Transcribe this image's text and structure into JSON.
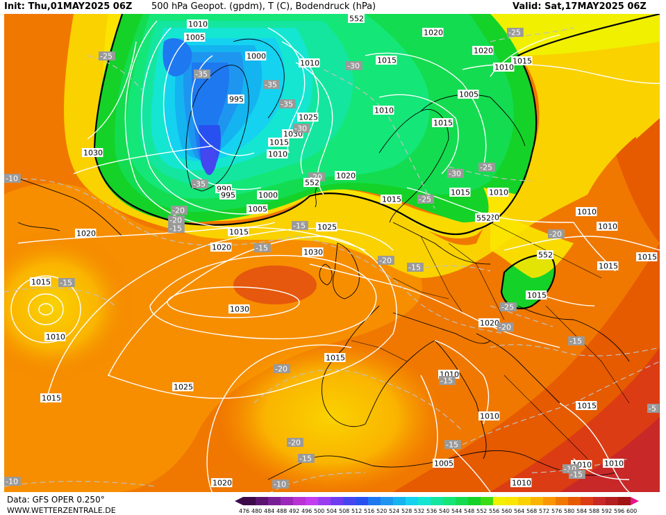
{
  "header": {
    "init": "Init: Thu,01MAY2025 06Z",
    "title": "500 hPa Geopot. (gpdm), T (C), Bodendruck (hPa)",
    "valid": "Valid: Sat,17MAY2025 06Z"
  },
  "footer": {
    "data_source": "Data: GFS OPER 0.250°",
    "website": "WWW.WETTERZENTRALE.DE"
  },
  "legend": {
    "values": [
      "476",
      "480",
      "484",
      "488",
      "492",
      "496",
      "500",
      "504",
      "508",
      "512",
      "516",
      "520",
      "524",
      "528",
      "532",
      "536",
      "540",
      "544",
      "548",
      "552",
      "556",
      "560",
      "564",
      "568",
      "572",
      "576",
      "580",
      "584",
      "588",
      "592",
      "596",
      "600"
    ],
    "colors": [
      "#3c0a4a",
      "#5a1470",
      "#7a1e96",
      "#9a28b8",
      "#b832d4",
      "#c43cf0",
      "#9a3cf0",
      "#6e3cf0",
      "#4646f0",
      "#2850f0",
      "#1e78f0",
      "#1e96f0",
      "#14b4f0",
      "#14d2f0",
      "#14e6d2",
      "#14e6a0",
      "#14e678",
      "#14dc50",
      "#14d228",
      "#3cdc14",
      "#f0f000",
      "#fae600",
      "#fad200",
      "#fab400",
      "#fa9600",
      "#f07800",
      "#e65a00",
      "#dc3c14",
      "#c82828",
      "#b41e1e",
      "#a01414",
      "#e6148c"
    ]
  },
  "map": {
    "pressure_labels": [
      {
        "text": "1010",
        "key": "p1"
      },
      {
        "text": "1005",
        "key": "p2"
      },
      {
        "text": "1000",
        "key": "p3"
      },
      {
        "text": "995",
        "key": "p4"
      },
      {
        "text": "1010",
        "key": "p5"
      },
      {
        "text": "1015",
        "key": "p6"
      },
      {
        "text": "1020",
        "key": "p7"
      },
      {
        "text": "1025",
        "key": "p8"
      },
      {
        "text": "1030",
        "key": "p9"
      },
      {
        "text": "1015",
        "key": "p10"
      },
      {
        "text": "990",
        "key": "p11"
      },
      {
        "text": "995",
        "key": "p12"
      },
      {
        "text": "1000",
        "key": "p13"
      },
      {
        "text": "1005",
        "key": "p14"
      },
      {
        "text": "1015",
        "key": "p15"
      },
      {
        "text": "1020",
        "key": "p16"
      },
      {
        "text": "1020",
        "key": "p17"
      },
      {
        "text": "1030",
        "key": "p18"
      },
      {
        "text": "1020",
        "key": "p19"
      },
      {
        "text": "1025",
        "key": "p20"
      },
      {
        "text": "1030",
        "key": "p21"
      },
      {
        "text": "1030",
        "key": "p22"
      },
      {
        "text": "1015",
        "key": "p23"
      },
      {
        "text": "1010",
        "key": "p24"
      },
      {
        "text": "1025",
        "key": "p25"
      },
      {
        "text": "1015",
        "key": "p26"
      },
      {
        "text": "1020",
        "key": "p27"
      },
      {
        "text": "1015",
        "key": "p28"
      },
      {
        "text": "1015",
        "key": "p29"
      },
      {
        "text": "1010",
        "key": "p30"
      },
      {
        "text": "1005",
        "key": "p31"
      },
      {
        "text": "1020",
        "key": "p32"
      },
      {
        "text": "1020",
        "key": "p33"
      },
      {
        "text": "1015",
        "key": "p34"
      },
      {
        "text": "1010",
        "key": "p35"
      },
      {
        "text": "1005",
        "key": "p36"
      },
      {
        "text": "1010",
        "key": "p37"
      },
      {
        "text": "1015",
        "key": "p38"
      },
      {
        "text": "1010",
        "key": "p39"
      },
      {
        "text": "1010",
        "key": "p40"
      },
      {
        "text": "1015",
        "key": "p41"
      },
      {
        "text": "1010",
        "key": "p42"
      },
      {
        "text": "1015",
        "key": "p43"
      },
      {
        "text": "1015",
        "key": "p44"
      },
      {
        "text": "1010",
        "key": "p45"
      },
      {
        "text": "1010",
        "key": "p46"
      },
      {
        "text": "1010",
        "key": "p47"
      },
      {
        "text": "1015",
        "key": "p48"
      },
      {
        "text": "1020",
        "key": "p49"
      },
      {
        "text": "1010",
        "key": "p50"
      },
      {
        "text": "1010",
        "key": "p51"
      },
      {
        "text": "1015",
        "key": "p52"
      }
    ],
    "temperature_labels": [
      {
        "text": "-25",
        "key": "t1"
      },
      {
        "text": "-35",
        "key": "t2"
      },
      {
        "text": "-35",
        "key": "t3"
      },
      {
        "text": "-35",
        "key": "t4"
      },
      {
        "text": "-30",
        "key": "t5"
      },
      {
        "text": "-30",
        "key": "t6"
      },
      {
        "text": "-25",
        "key": "t7"
      },
      {
        "text": "-30",
        "key": "t8"
      },
      {
        "text": "-25",
        "key": "t9"
      },
      {
        "text": "-25",
        "key": "t10"
      },
      {
        "text": "-20",
        "key": "t11"
      },
      {
        "text": "-20",
        "key": "t12"
      },
      {
        "text": "-15",
        "key": "t13"
      },
      {
        "text": "-15",
        "key": "t14"
      },
      {
        "text": "-15",
        "key": "t15"
      },
      {
        "text": "-35",
        "key": "t16"
      },
      {
        "text": "-10",
        "key": "t17"
      },
      {
        "text": "-15",
        "key": "t18"
      },
      {
        "text": "-20",
        "key": "t19"
      },
      {
        "text": "-20",
        "key": "t20"
      },
      {
        "text": "-20",
        "key": "t21"
      },
      {
        "text": "-25",
        "key": "t22"
      },
      {
        "text": "-20",
        "key": "t23"
      },
      {
        "text": "-15",
        "key": "t24"
      },
      {
        "text": "-20",
        "key": "t25"
      },
      {
        "text": "-15",
        "key": "t26"
      },
      {
        "text": "-20",
        "key": "t27"
      },
      {
        "text": "-15",
        "key": "t28"
      },
      {
        "text": "-10",
        "key": "t29"
      },
      {
        "text": "-15",
        "key": "t30"
      },
      {
        "text": "-10",
        "key": "t31"
      },
      {
        "text": "-10",
        "key": "t32"
      },
      {
        "text": "-15",
        "key": "t33"
      },
      {
        "text": "-5",
        "key": "t34"
      },
      {
        "text": "-15",
        "key": "t35"
      }
    ],
    "geopotential_labels": [
      {
        "text": "552",
        "key": "g1"
      },
      {
        "text": "552",
        "key": "g2"
      },
      {
        "text": "552",
        "key": "g3"
      },
      {
        "text": "552",
        "key": "g4"
      }
    ]
  }
}
